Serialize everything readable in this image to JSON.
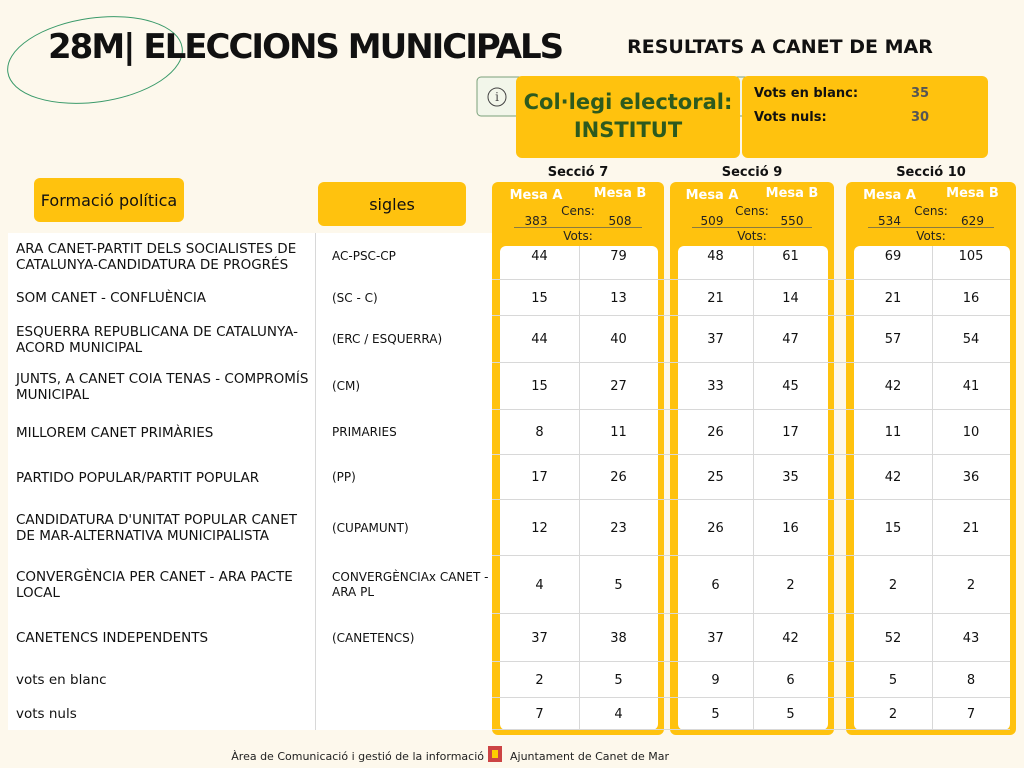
{
  "header": {
    "title": "28M| ELECCIONS MUNICIPALS",
    "subtitle": "RESULTATS A CANET DE MAR"
  },
  "college": {
    "label": "Col·legi electoral:",
    "name": "INSTITUT"
  },
  "summary": [
    {
      "label": "Vots en blanc:",
      "value": 35
    },
    {
      "label": "Vots nuls:",
      "value": 30
    }
  ],
  "columns": {
    "party": "Formació política",
    "acronym": "sigles"
  },
  "labels": {
    "census": "Cens:",
    "votes": "Vots:"
  },
  "sections": [
    {
      "name": "Secció 7",
      "mesas": [
        {
          "name": "Mesa A",
          "census": 383
        },
        {
          "name": "Mesa B",
          "census": 508
        }
      ]
    },
    {
      "name": "Secció 9",
      "mesas": [
        {
          "name": "Mesa A",
          "census": 509
        },
        {
          "name": "Mesa B",
          "census": 550
        }
      ]
    },
    {
      "name": "Secció 10",
      "mesas": [
        {
          "name": "Mesa A",
          "census": 534
        },
        {
          "name": "Mesa B",
          "census": 629
        }
      ]
    }
  ],
  "rows": [
    {
      "party": "ARA CANET-PARTIT DELS SOCIALISTES DE CATALUNYA-CANDIDATURA DE PROGRÉS",
      "acronym": "AC-PSC-CP",
      "votes": [
        44,
        79,
        48,
        61,
        69,
        105
      ]
    },
    {
      "party": "SOM CANET - CONFLUÈNCIA",
      "acronym": "(SC - C)",
      "votes": [
        15,
        13,
        21,
        14,
        21,
        16
      ]
    },
    {
      "party": "ESQUERRA REPUBLICANA DE CATALUNYA-ACORD MUNICIPAL",
      "acronym": "(ERC / ESQUERRA)",
      "votes": [
        44,
        40,
        37,
        47,
        57,
        54
      ]
    },
    {
      "party": "JUNTS, A CANET COIA TENAS - COMPROMÍS MUNICIPAL",
      "acronym": "(CM)",
      "votes": [
        15,
        27,
        33,
        45,
        42,
        41
      ]
    },
    {
      "party": "MILLOREM CANET PRIMÀRIES",
      "acronym": "PRIMARIES",
      "votes": [
        8,
        11,
        26,
        17,
        11,
        10
      ]
    },
    {
      "party": "PARTIDO POPULAR/PARTIT POPULAR",
      "acronym": "(PP)",
      "votes": [
        17,
        26,
        25,
        35,
        42,
        36
      ]
    },
    {
      "party": "CANDIDATURA D'UNITAT POPULAR CANET DE MAR-ALTERNATIVA MUNICIPALISTA",
      "acronym": "(CUPAMUNT)",
      "votes": [
        12,
        23,
        26,
        16,
        15,
        21
      ]
    },
    {
      "party": "CONVERGÈNCIA PER CANET - ARA PACTE LOCAL",
      "acronym": "CONVERGÈNCIAx CANET - ARA PL",
      "votes": [
        4,
        5,
        6,
        2,
        2,
        2
      ]
    },
    {
      "party": "CANETENCS INDEPENDENTS",
      "acronym": "(CANETENCS)",
      "votes": [
        37,
        38,
        37,
        42,
        52,
        43
      ]
    },
    {
      "party": "vots en blanc",
      "votes": [
        2,
        5,
        9,
        6,
        5,
        8
      ]
    },
    {
      "party": "vots nuls",
      "votes": [
        7,
        4,
        5,
        5,
        2,
        7
      ]
    }
  ],
  "footer": {
    "left": "Àrea de Comunicació i gestió de la informació",
    "right": "Ajuntament de Canet de Mar"
  }
}
